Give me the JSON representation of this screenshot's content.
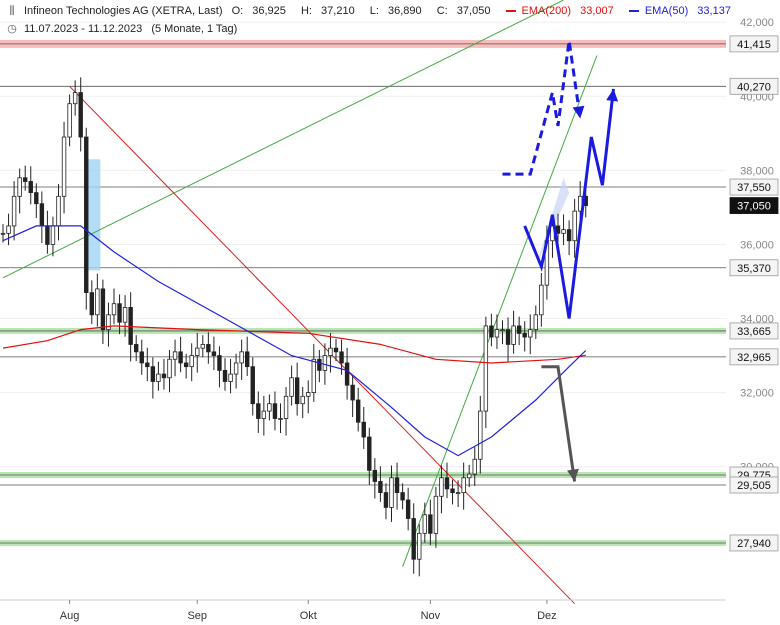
{
  "header": {
    "title": "Infineon Technologies AG (XETRA, Last)",
    "ohlc": {
      "o_label": "O:",
      "o": "36,925",
      "h_label": "H:",
      "h": "37,210",
      "l_label": "L:",
      "l": "36,890",
      "c_label": "C:",
      "c": "37,050"
    },
    "ema200_label": "EMA(200)",
    "ema200_value": "33,007",
    "ema50_label": "EMA(50)",
    "ema50_value": "33,137",
    "date_range": "11.07.2023 - 11.12.2023",
    "period": "(5 Monate, 1 Tag)"
  },
  "colors": {
    "up": "#ffffff",
    "down": "#222222",
    "ema200": "#e01010",
    "ema50": "#2020e0",
    "green_line": "#44aa44",
    "red_line": "#dd2222",
    "projection_blue": "#1a1ae0",
    "projection_gray": "#555555",
    "resistance_band": "#f4a0a0",
    "support_band": "#a8e0a0",
    "highlight_rect": "#a0d4f4"
  },
  "chart_data": {
    "type": "candlestick",
    "ylim": [
      26400,
      42600
    ],
    "y_ticks": [
      {
        "v": 42000,
        "l": "42,000"
      },
      {
        "v": 40000,
        "l": "40,000"
      },
      {
        "v": 38000,
        "l": "38,000"
      },
      {
        "v": 36000,
        "l": "36,000"
      },
      {
        "v": 34000,
        "l": "34,000"
      },
      {
        "v": 32000,
        "l": "32,000"
      },
      {
        "v": 30000,
        "l": "30,000"
      }
    ],
    "x_labels": [
      {
        "i": 12,
        "l": "Aug"
      },
      {
        "i": 35,
        "l": "Sep"
      },
      {
        "i": 55,
        "l": "Okt"
      },
      {
        "i": 77,
        "l": "Nov"
      },
      {
        "i": 98,
        "l": "Dez"
      }
    ],
    "n_days": 108,
    "levels": [
      {
        "v": 41415,
        "l": "41,415",
        "style": "resistance"
      },
      {
        "v": 40270,
        "l": "40,270",
        "style": "line"
      },
      {
        "v": 37550,
        "l": "37,550",
        "style": "line"
      },
      {
        "v": 37050,
        "l": "37,050",
        "style": "current"
      },
      {
        "v": 35370,
        "l": "35,370",
        "style": "line"
      },
      {
        "v": 33665,
        "l": "33,665",
        "style": "support"
      },
      {
        "v": 32965,
        "l": "32,965",
        "style": "line"
      },
      {
        "v": 29775,
        "l": "29,775",
        "style": "support"
      },
      {
        "v": 29505,
        "l": "29,505",
        "style": "line"
      },
      {
        "v": 27940,
        "l": "27,940",
        "style": "support"
      }
    ],
    "closes": [
      36300,
      36500,
      37300,
      37800,
      37700,
      37400,
      37100,
      36500,
      36000,
      36500,
      37300,
      38900,
      39800,
      40100,
      38900,
      34700,
      34100,
      34800,
      33700,
      34100,
      34400,
      33900,
      34300,
      33300,
      33100,
      32800,
      32700,
      32300,
      32500,
      32400,
      32900,
      33100,
      32800,
      32700,
      33000,
      33200,
      33300,
      33100,
      33000,
      32600,
      32300,
      32500,
      32800,
      33100,
      32700,
      31700,
      31300,
      31500,
      31700,
      31300,
      31300,
      31900,
      32400,
      31700,
      31900,
      32000,
      32900,
      32600,
      33000,
      33200,
      33100,
      32800,
      32200,
      31800,
      31200,
      30800,
      29900,
      29600,
      29300,
      28900,
      29700,
      29300,
      29100,
      28600,
      27500,
      28200,
      28700,
      28200,
      29200,
      29700,
      29400,
      29300,
      29300,
      29700,
      29800,
      30200,
      31500,
      33800,
      33500,
      33700,
      33700,
      33300,
      33800,
      33600,
      33500,
      33700,
      34100,
      34900,
      36100,
      36500,
      36300,
      36400,
      36100,
      36900,
      37300,
      37050
    ],
    "ema200": [
      [
        0,
        33200
      ],
      [
        8,
        33400
      ],
      [
        14,
        33700
      ],
      [
        20,
        33800
      ],
      [
        35,
        33700
      ],
      [
        55,
        33600
      ],
      [
        68,
        33300
      ],
      [
        78,
        32900
      ],
      [
        88,
        32800
      ],
      [
        100,
        32900
      ],
      [
        105,
        33007
      ]
    ],
    "ema50": [
      [
        0,
        36100
      ],
      [
        6,
        36500
      ],
      [
        14,
        36500
      ],
      [
        20,
        35800
      ],
      [
        28,
        35000
      ],
      [
        40,
        34000
      ],
      [
        52,
        33000
      ],
      [
        62,
        32600
      ],
      [
        70,
        31600
      ],
      [
        76,
        30800
      ],
      [
        82,
        30300
      ],
      [
        88,
        30800
      ],
      [
        96,
        31800
      ],
      [
        102,
        32700
      ],
      [
        105,
        33137
      ]
    ],
    "highlight": {
      "i0": 15,
      "i1": 17,
      "y0": 38300,
      "y1": 35300
    },
    "green_lines": [
      [
        [
          0,
          35100
        ],
        [
          101,
          42600
        ]
      ],
      [
        [
          72,
          27300
        ],
        [
          107,
          41100
        ]
      ]
    ],
    "red_line": [
      [
        12,
        40270
      ],
      [
        103,
        26300
      ]
    ],
    "projection_blue_dashed": [
      [
        90,
        37900
      ],
      [
        95,
        37900
      ],
      [
        99,
        40100
      ],
      [
        100,
        39200
      ],
      [
        102,
        41500
      ],
      [
        104,
        39400
      ]
    ],
    "projection_blue_solid": [
      [
        94,
        36500
      ],
      [
        97,
        35400
      ],
      [
        99,
        36800
      ],
      [
        102,
        34000
      ],
      [
        106,
        38900
      ],
      [
        108,
        37600
      ],
      [
        110,
        40200
      ]
    ],
    "projection_gray": [
      [
        97,
        32700
      ],
      [
        100,
        32700
      ],
      [
        103,
        29600
      ]
    ],
    "wedge": [
      [
        96,
        35400
      ],
      [
        101,
        37800
      ],
      [
        102,
        37400
      ]
    ]
  }
}
